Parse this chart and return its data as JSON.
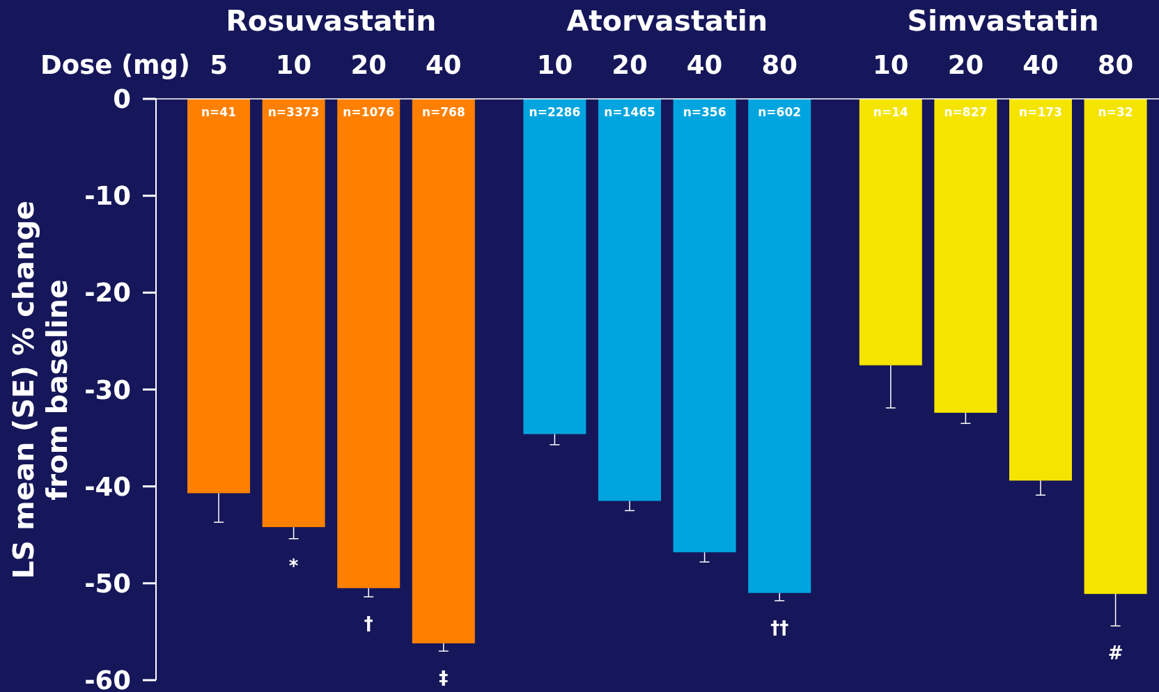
{
  "chart_data": {
    "type": "bar",
    "stacked": true,
    "xlabel": "Dose (mg)",
    "ylabel": "LS mean (SE) % change from baseline",
    "categories": [
      "5",
      "10",
      "20",
      "40",
      "10",
      "20",
      "40",
      "80",
      "10",
      "20",
      "40",
      "80"
    ],
    "ylim": [
      -60,
      0
    ],
    "yticks": [
      0,
      -10,
      -20,
      -30,
      -40,
      -50,
      -60
    ],
    "legend": false,
    "series": [
      {
        "name": "Rosuvastatin",
        "color": "#ff8000",
        "values": [
          -40.7,
          -44.2,
          -50.5,
          -56.2,
          null,
          null,
          null,
          null,
          null,
          null,
          null,
          null
        ],
        "errors": [
          [
            -43.7,
            -40.7
          ],
          [
            -45.4,
            -44.2
          ],
          [
            -51.4,
            -50.5
          ],
          [
            -57.0,
            -56.2
          ],
          null,
          null,
          null,
          null,
          null,
          null,
          null,
          null
        ]
      },
      {
        "name": "Atorvastatin",
        "color": "#00a5df",
        "values": [
          null,
          null,
          null,
          null,
          -34.6,
          -41.5,
          -46.8,
          -51.0,
          null,
          null,
          null,
          null
        ],
        "errors": [
          null,
          null,
          null,
          null,
          [
            -35.7,
            -34.6
          ],
          [
            -42.5,
            -41.5
          ],
          [
            -47.8,
            -46.8
          ],
          [
            -51.8,
            -51.0
          ],
          null,
          null,
          null,
          null
        ]
      },
      {
        "name": "Simvastatin",
        "color": "#f5e400",
        "values": [
          null,
          null,
          null,
          null,
          null,
          null,
          null,
          null,
          -27.5,
          -32.4,
          -39.4,
          -51.1
        ],
        "errors": [
          null,
          null,
          null,
          null,
          null,
          null,
          null,
          null,
          [
            -31.9,
            -27.5
          ],
          [
            -33.5,
            -32.4
          ],
          [
            -40.9,
            -39.4
          ],
          [
            -54.4,
            -51.1
          ]
        ]
      }
    ],
    "annotations": [
      "n=41",
      "n=3373",
      "n=1076",
      "n=768",
      "n=2286",
      "n=1465",
      "n=356",
      "n=602",
      "n=14",
      "n=827",
      "n=173",
      "n=32",
      {
        "text": "*",
        "x": "10",
        "y": -44.2
      },
      {
        "text": "†",
        "x": "20",
        "y": -50.5
      },
      {
        "text": "‡",
        "x": "40",
        "y": -56.2
      },
      {
        "text": "††",
        "x": "80",
        "y": -51.0
      },
      "#"
    ]
  }
}
